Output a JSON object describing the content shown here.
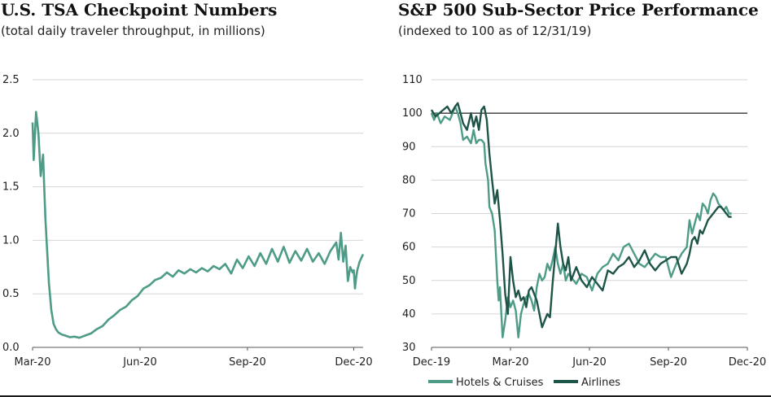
{
  "colors": {
    "hotels": "#4e9c88",
    "airlines": "#1f5448",
    "tsa": "#4e9c88",
    "grid": "#d6d6d6",
    "baseline": "#222222"
  },
  "chart_data": [
    {
      "type": "line",
      "title": "U.S. TSA Checkpoint Numbers",
      "subtitle": "(total daily traveler throughput, in millions)",
      "xlabel": "",
      "ylabel": "",
      "ylim": [
        0,
        2.5
      ],
      "y_ticks": [
        "0.0",
        "0.5",
        "1.0",
        "1.5",
        "2.0",
        "2.5"
      ],
      "y_tick_values": [
        0,
        0.5,
        1.0,
        1.5,
        2.0,
        2.5
      ],
      "x_tick_labels": [
        "Mar-20",
        "Jun-20",
        "Sep-20",
        "Dec-20"
      ],
      "x_tick_days": [
        0,
        92,
        184,
        275
      ],
      "x_range_days": [
        0,
        283
      ],
      "grid": true,
      "series": [
        {
          "name": "TSA throughput",
          "x_days": [
            0,
            1,
            3,
            5,
            7,
            9,
            10,
            11,
            12,
            14,
            16,
            18,
            20,
            22,
            25,
            28,
            32,
            36,
            40,
            45,
            50,
            55,
            60,
            65,
            70,
            75,
            80,
            85,
            90,
            95,
            100,
            105,
            110,
            115,
            120,
            125,
            130,
            135,
            140,
            145,
            150,
            155,
            160,
            165,
            170,
            175,
            180,
            185,
            190,
            195,
            200,
            205,
            210,
            215,
            220,
            225,
            230,
            235,
            240,
            245,
            250,
            255,
            260,
            262,
            264,
            266,
            268,
            270,
            272,
            274,
            275,
            276,
            277,
            278,
            280,
            283
          ],
          "values": [
            2.1,
            1.75,
            2.2,
            2.0,
            1.6,
            1.8,
            1.5,
            1.2,
            1.0,
            0.6,
            0.35,
            0.22,
            0.17,
            0.14,
            0.12,
            0.11,
            0.095,
            0.1,
            0.09,
            0.11,
            0.13,
            0.17,
            0.2,
            0.26,
            0.3,
            0.35,
            0.38,
            0.44,
            0.48,
            0.55,
            0.58,
            0.63,
            0.65,
            0.7,
            0.66,
            0.72,
            0.69,
            0.73,
            0.7,
            0.74,
            0.71,
            0.76,
            0.73,
            0.78,
            0.69,
            0.82,
            0.74,
            0.85,
            0.76,
            0.88,
            0.78,
            0.92,
            0.8,
            0.94,
            0.79,
            0.9,
            0.81,
            0.92,
            0.8,
            0.88,
            0.78,
            0.9,
            0.98,
            0.82,
            1.07,
            0.8,
            0.95,
            0.62,
            0.75,
            0.7,
            0.72,
            0.55,
            0.65,
            0.72,
            0.8,
            0.87
          ]
        }
      ]
    },
    {
      "type": "line",
      "title": "S&P 500 Sub-Sector Price Performance",
      "subtitle": "(indexed to 100 as of 12/31/19)",
      "xlabel": "",
      "ylabel": "",
      "ylim": [
        30,
        110
      ],
      "y_ticks": [
        "30",
        "40",
        "50",
        "60",
        "70",
        "80",
        "90",
        "100",
        "110"
      ],
      "y_tick_values": [
        30,
        40,
        50,
        60,
        70,
        80,
        90,
        100,
        110
      ],
      "x_tick_labels": [
        "Dec-19",
        "Mar-20",
        "Jun-20",
        "Sep-20",
        "Dec-20"
      ],
      "x_tick_months": [
        0,
        3,
        6,
        9,
        12
      ],
      "x_range_months": [
        0,
        12
      ],
      "reference_line": 100,
      "grid": true,
      "legend": [
        "Hotels & Cruises",
        "Airlines"
      ],
      "legend_position": "bottom",
      "series": [
        {
          "name": "Hotels & Cruises",
          "x_months": [
            0,
            0.1,
            0.2,
            0.35,
            0.5,
            0.7,
            0.9,
            1.0,
            1.1,
            1.2,
            1.35,
            1.5,
            1.6,
            1.7,
            1.8,
            1.9,
            2.0,
            2.05,
            2.15,
            2.2,
            2.3,
            2.4,
            2.5,
            2.55,
            2.6,
            2.7,
            2.8,
            2.9,
            3.0,
            3.1,
            3.2,
            3.3,
            3.4,
            3.5,
            3.6,
            3.7,
            3.8,
            3.9,
            4.0,
            4.1,
            4.2,
            4.3,
            4.4,
            4.5,
            4.6,
            4.7,
            4.8,
            4.9,
            5.0,
            5.1,
            5.2,
            5.3,
            5.5,
            5.7,
            5.9,
            6.1,
            6.3,
            6.5,
            6.7,
            6.9,
            7.1,
            7.3,
            7.5,
            7.7,
            7.9,
            8.1,
            8.3,
            8.5,
            8.7,
            8.9,
            9.1,
            9.3,
            9.5,
            9.7,
            9.8,
            9.9,
            10.0,
            10.1,
            10.2,
            10.3,
            10.4,
            10.5,
            10.6,
            10.7,
            10.8,
            10.9,
            11.0,
            11.1,
            11.2,
            11.3,
            11.4
          ],
          "values": [
            100,
            98,
            100,
            97,
            99,
            98,
            102,
            100,
            97,
            92,
            93,
            91,
            95,
            91,
            92,
            92,
            91,
            85,
            80,
            72,
            70,
            65,
            50,
            44,
            48,
            33,
            38,
            45,
            42,
            44,
            41,
            33,
            40,
            43,
            45,
            46,
            44,
            41,
            48,
            52,
            50,
            51,
            55,
            53,
            56,
            60,
            55,
            52,
            55,
            50,
            52,
            51,
            49,
            52,
            51,
            47,
            52,
            54,
            55,
            58,
            56,
            60,
            61,
            58,
            55,
            54,
            56,
            58,
            57,
            57,
            51,
            55,
            58,
            60,
            68,
            64,
            67,
            70,
            68,
            73,
            72,
            70,
            74,
            76,
            75,
            73,
            72,
            71,
            72,
            70,
            70
          ]
        },
        {
          "name": "Airlines",
          "x_months": [
            0,
            0.15,
            0.3,
            0.45,
            0.6,
            0.75,
            0.9,
            1.0,
            1.1,
            1.2,
            1.35,
            1.5,
            1.6,
            1.7,
            1.8,
            1.9,
            2.0,
            2.1,
            2.2,
            2.3,
            2.4,
            2.5,
            2.6,
            2.7,
            2.8,
            2.9,
            3.0,
            3.1,
            3.2,
            3.3,
            3.4,
            3.5,
            3.6,
            3.7,
            3.8,
            3.9,
            4.0,
            4.1,
            4.2,
            4.3,
            4.4,
            4.5,
            4.6,
            4.7,
            4.8,
            4.9,
            5.0,
            5.1,
            5.2,
            5.3,
            5.5,
            5.7,
            5.9,
            6.1,
            6.3,
            6.5,
            6.7,
            6.9,
            7.1,
            7.3,
            7.5,
            7.7,
            7.9,
            8.1,
            8.3,
            8.5,
            8.7,
            8.9,
            9.1,
            9.3,
            9.5,
            9.7,
            9.8,
            9.9,
            10.0,
            10.1,
            10.2,
            10.3,
            10.4,
            10.5,
            10.6,
            10.7,
            10.8,
            10.9,
            11.0,
            11.1,
            11.2,
            11.3,
            11.4
          ],
          "values": [
            101,
            99,
            100,
            101,
            102,
            100,
            102,
            103,
            100,
            97,
            95,
            100,
            96,
            99,
            95,
            101,
            102,
            98,
            88,
            80,
            73,
            77,
            68,
            58,
            46,
            40,
            57,
            50,
            45,
            47,
            44,
            45,
            42,
            47,
            48,
            46,
            44,
            40,
            36,
            38,
            40,
            39,
            49,
            58,
            67,
            60,
            55,
            53,
            57,
            50,
            54,
            50,
            48,
            51,
            49,
            47,
            53,
            52,
            54,
            55,
            57,
            54,
            56,
            59,
            55,
            53,
            55,
            56,
            57,
            57,
            52,
            55,
            58,
            62,
            63,
            61,
            65,
            64,
            66,
            68,
            69,
            70,
            71,
            72,
            72,
            71,
            70,
            69,
            69
          ]
        }
      ]
    }
  ]
}
